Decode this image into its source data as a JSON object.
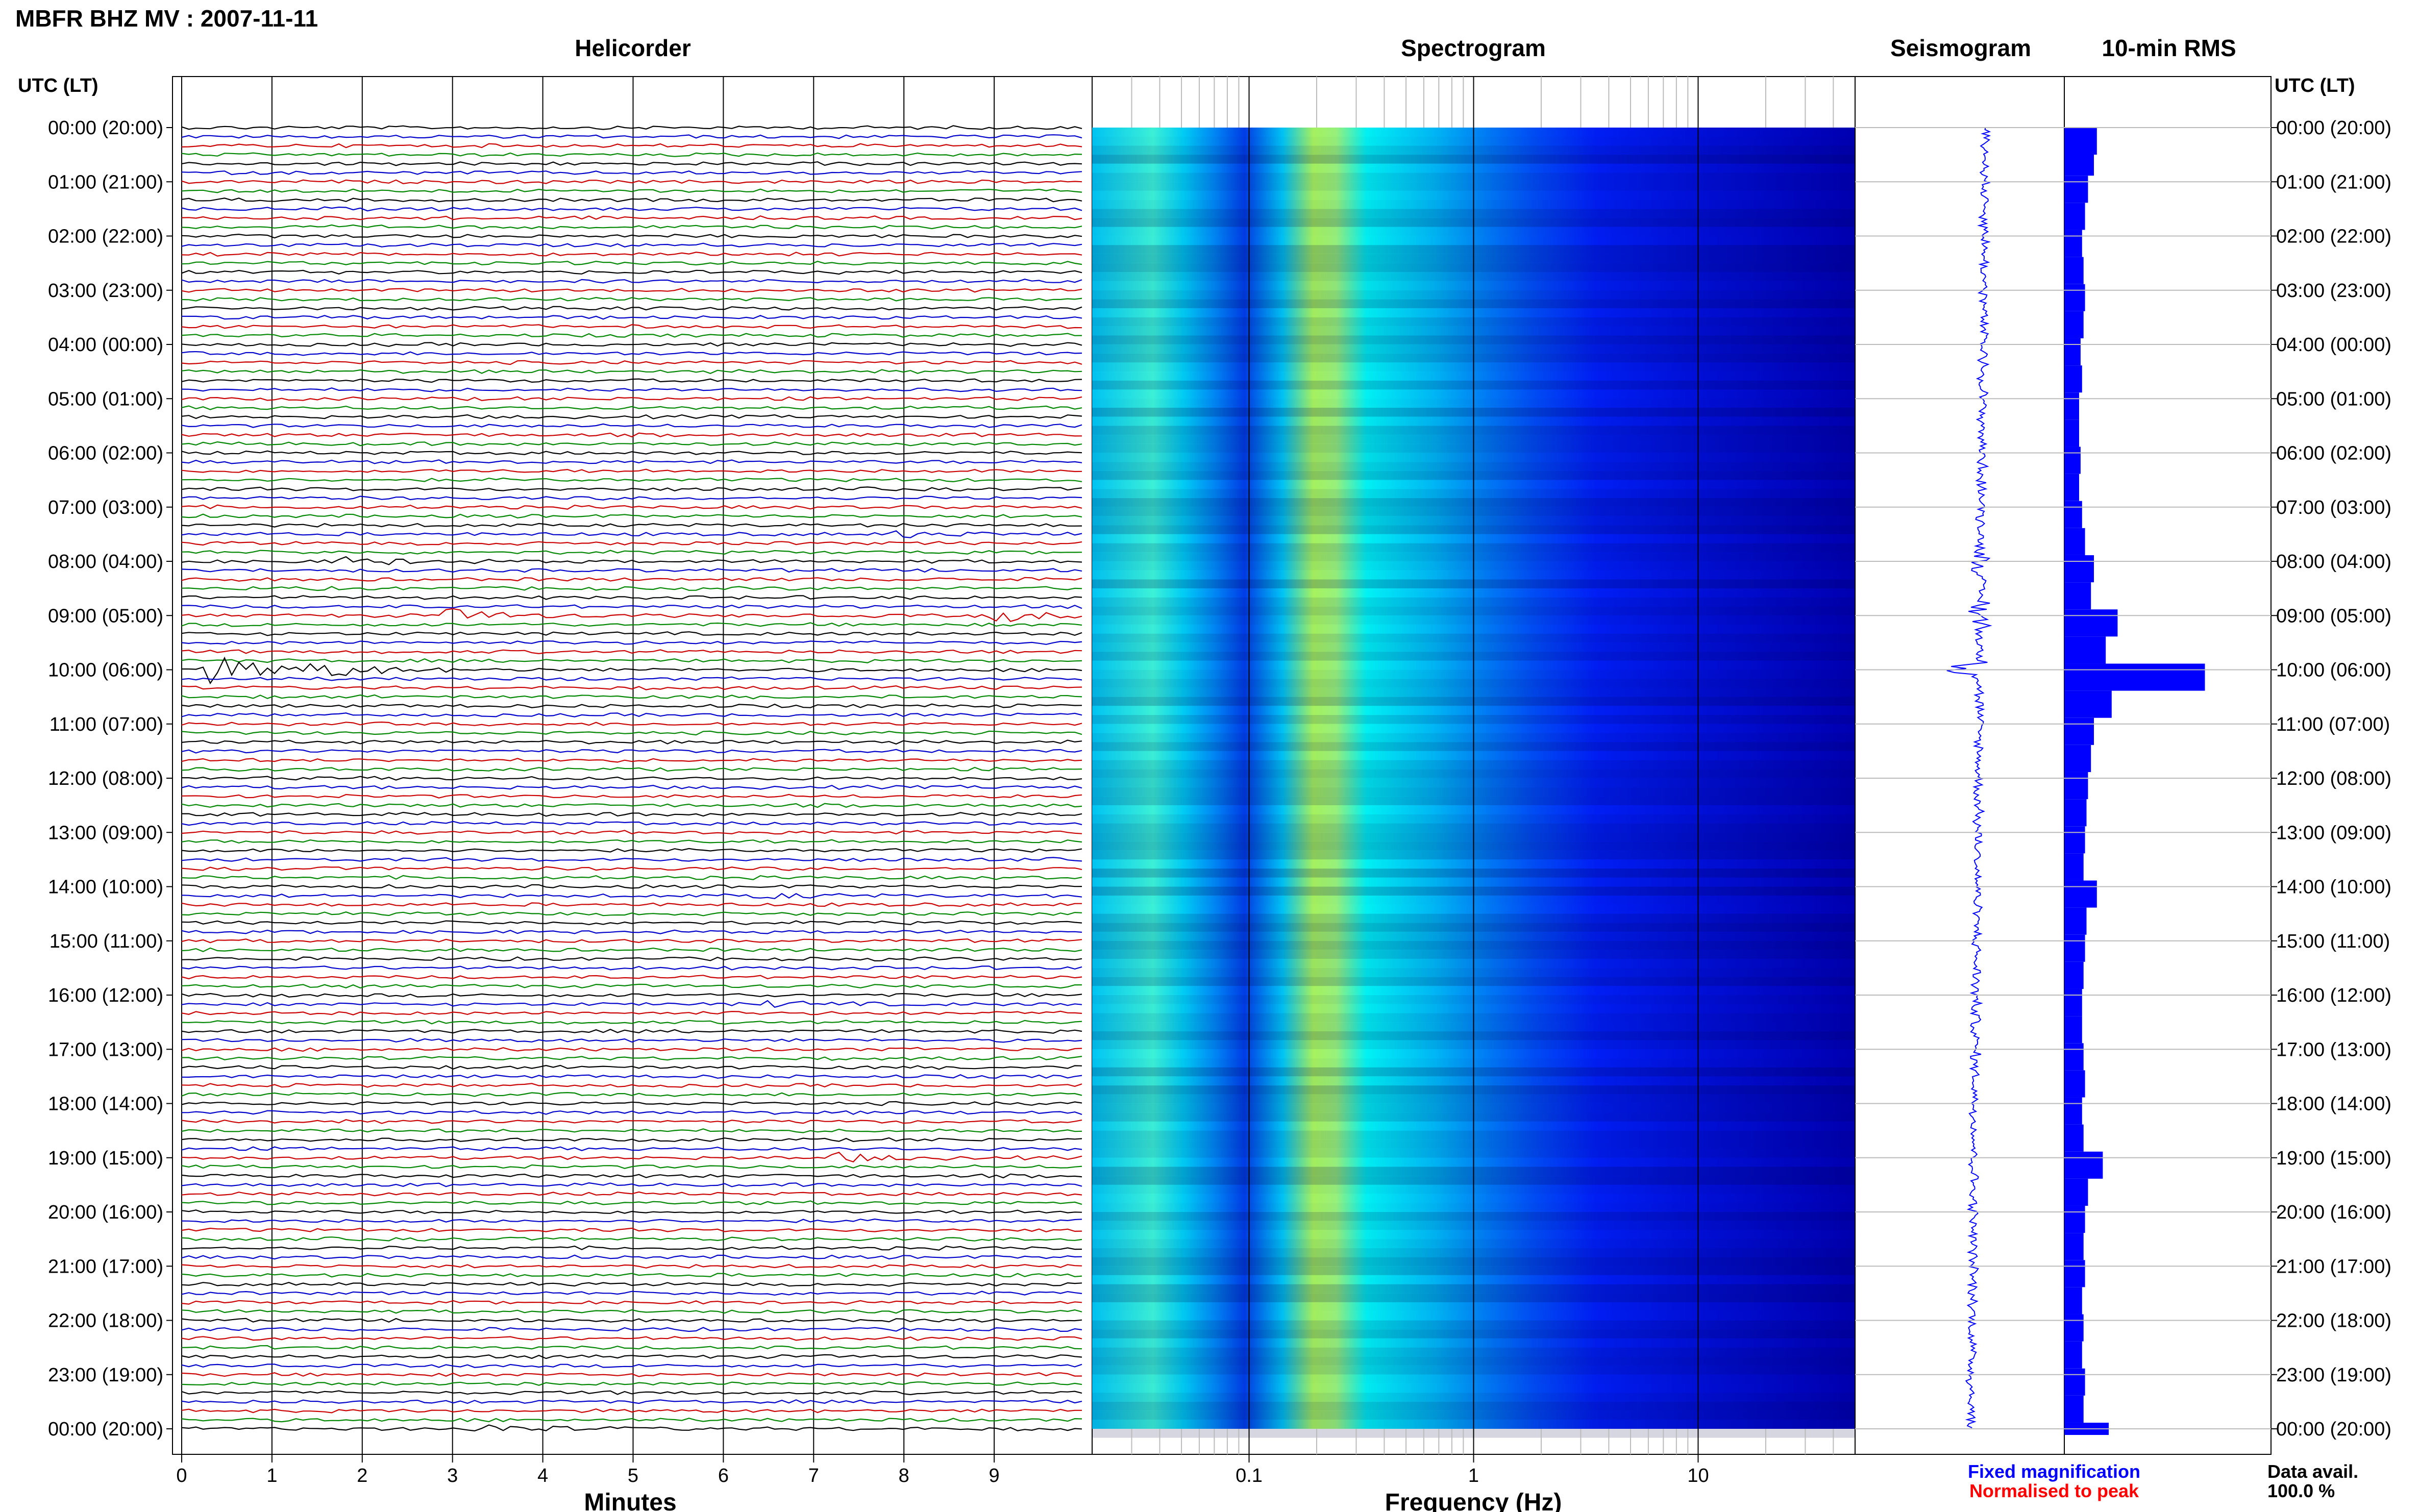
{
  "figure": {
    "title": "MBFR BHZ MV : 2007-11-11",
    "utc_label": "UTC (LT)",
    "legend": {
      "fixed": "Fixed magnification",
      "normalised": "Normalised to peak",
      "fixed_color": "#0000ff",
      "normalised_color": "#ff0000"
    },
    "data_avail": {
      "label": "Data avail.",
      "value": "100.0 %"
    }
  },
  "chart_data": [
    {
      "type": "line",
      "panel": "helicorder",
      "title": "Helicorder",
      "xlabel": "Minutes",
      "xlim": [
        0,
        10
      ],
      "xticks": [
        "0",
        "1",
        "2",
        "3",
        "4",
        "5",
        "6",
        "7",
        "8",
        "9"
      ],
      "trace_colors": [
        "#000000",
        "#0000cc",
        "#cc0000",
        "#008800"
      ],
      "rows_per_day": 145,
      "events": [
        {
          "hour": 10.0,
          "minute": 0.3,
          "amplitude": 1.0
        },
        {
          "hour": 10.0,
          "minute": 1.5,
          "amplitude": 0.5
        },
        {
          "hour": 9.0,
          "minute": 3.0,
          "amplitude": 0.4
        },
        {
          "hour": 9.0,
          "minute": 9.0,
          "amplitude": 0.4
        },
        {
          "hour": 19.0,
          "minute": 7.2,
          "amplitude": 0.3
        },
        {
          "hour": 14.2,
          "minute": 6.4,
          "amplitude": 0.25
        },
        {
          "hour": 16.2,
          "minute": 6.5,
          "amplitude": 0.25
        },
        {
          "hour": 24.0,
          "minute": 3.3,
          "amplitude": 0.3
        },
        {
          "hour": 8.0,
          "minute": 1.8,
          "amplitude": 0.3
        },
        {
          "hour": 7.5,
          "minute": 8.0,
          "amplitude": 0.2
        }
      ]
    },
    {
      "type": "heatmap",
      "panel": "spectrogram",
      "title": "Spectrogram",
      "xlabel": "Frequency (Hz)",
      "xscale": "log",
      "xlim": [
        0.02,
        50
      ],
      "xticks": [
        "0.1",
        "1",
        "10"
      ],
      "peak_band_hz": [
        0.2,
        0.25
      ],
      "colormap": [
        "#00008f",
        "#0000ff",
        "#0080ff",
        "#00ffff",
        "#80ff80",
        "#ffff00"
      ]
    },
    {
      "type": "line",
      "panel": "seismogram",
      "title": "Seismogram",
      "color": "#0000ff",
      "baseline_fraction": 0.15
    },
    {
      "type": "bar",
      "panel": "rms",
      "title": "10-min RMS",
      "color": "#0000ff",
      "xlim": [
        0,
        1
      ],
      "hours": [
        0,
        0.5,
        1,
        1.5,
        2,
        2.5,
        3,
        3.5,
        4,
        4.5,
        5,
        5.5,
        6,
        6.5,
        7,
        7.5,
        8,
        8.5,
        9,
        9.5,
        10,
        10.5,
        11,
        11.5,
        12,
        12.5,
        13,
        13.5,
        14,
        14.5,
        15,
        15.5,
        16,
        16.5,
        17,
        17.5,
        18,
        18.5,
        19,
        19.5,
        20,
        20.5,
        21,
        21.5,
        22,
        22.5,
        23,
        23.5,
        24
      ],
      "values": [
        0.22,
        0.2,
        0.16,
        0.14,
        0.12,
        0.13,
        0.14,
        0.13,
        0.11,
        0.12,
        0.1,
        0.1,
        0.11,
        0.1,
        0.12,
        0.14,
        0.2,
        0.18,
        0.36,
        0.28,
        0.95,
        0.32,
        0.2,
        0.18,
        0.16,
        0.15,
        0.14,
        0.13,
        0.22,
        0.15,
        0.14,
        0.13,
        0.12,
        0.12,
        0.13,
        0.14,
        0.12,
        0.13,
        0.26,
        0.16,
        0.14,
        0.13,
        0.14,
        0.12,
        0.13,
        0.12,
        0.14,
        0.13,
        0.3
      ]
    }
  ],
  "time_axis": {
    "labels": [
      "00:00 (20:00)",
      "01:00 (21:00)",
      "02:00 (22:00)",
      "03:00 (23:00)",
      "04:00 (00:00)",
      "05:00 (01:00)",
      "06:00 (02:00)",
      "07:00 (03:00)",
      "08:00 (04:00)",
      "09:00 (05:00)",
      "10:00 (06:00)",
      "11:00 (07:00)",
      "12:00 (08:00)",
      "13:00 (09:00)",
      "14:00 (10:00)",
      "15:00 (11:00)",
      "16:00 (12:00)",
      "17:00 (13:00)",
      "18:00 (14:00)",
      "19:00 (15:00)",
      "20:00 (16:00)",
      "21:00 (17:00)",
      "22:00 (18:00)",
      "23:00 (19:00)",
      "00:00 (20:00)"
    ]
  }
}
